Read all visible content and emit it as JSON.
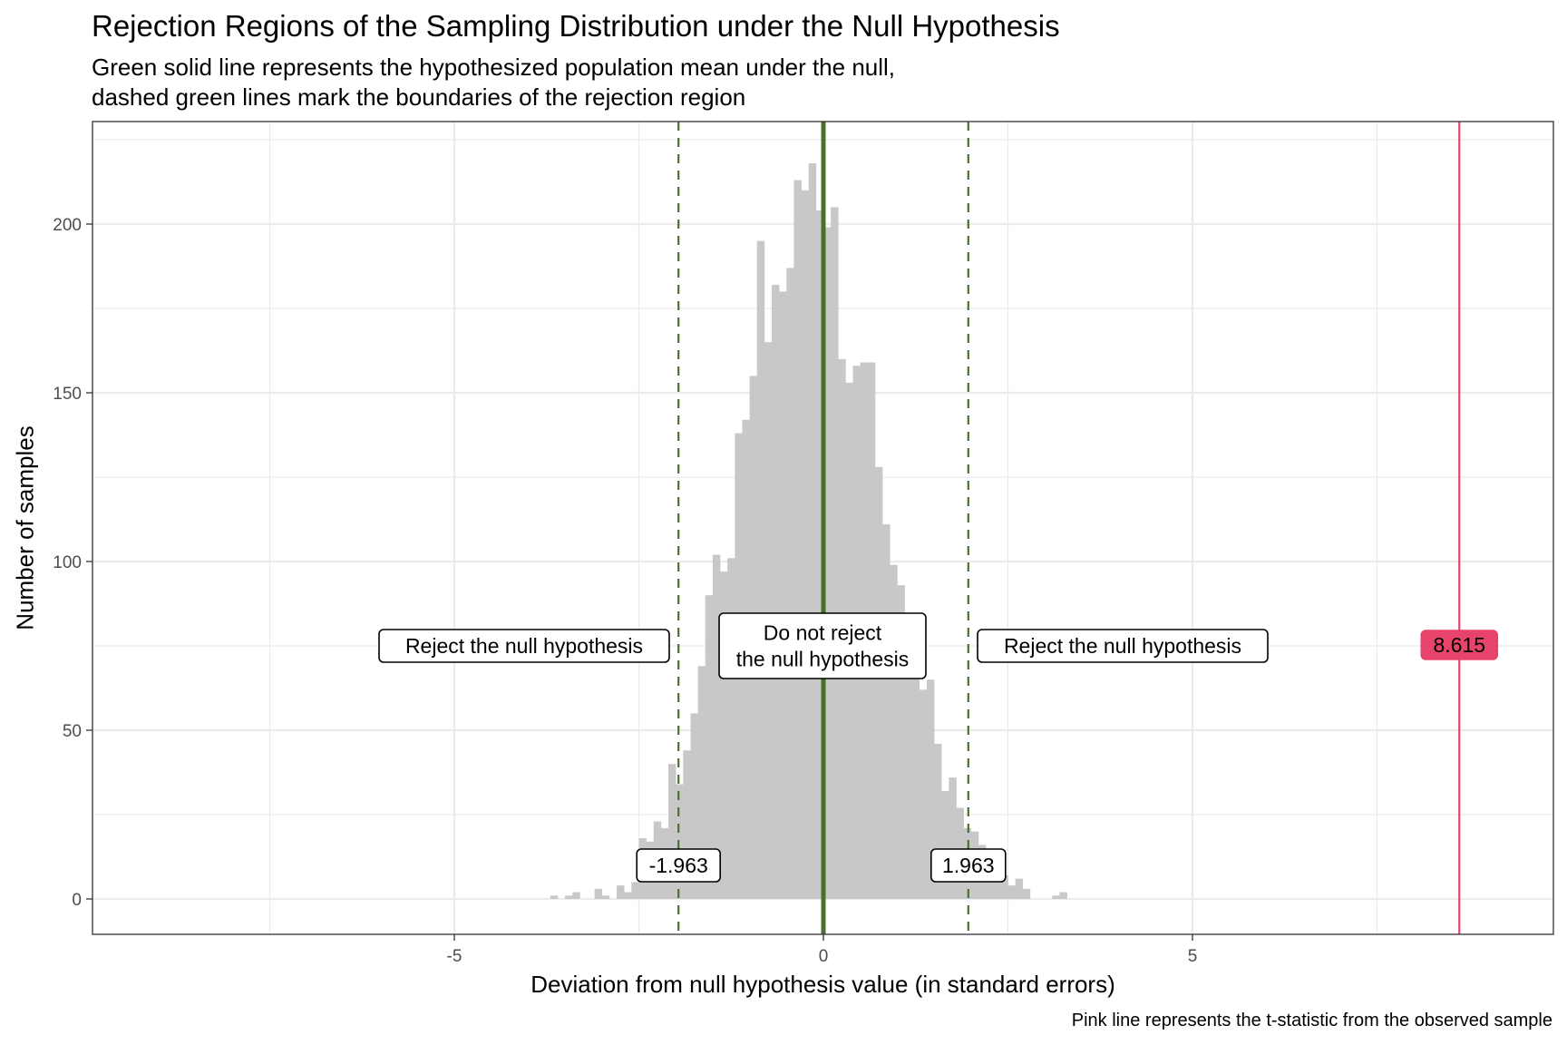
{
  "header": {
    "title": "Rejection Regions of the Sampling Distribution under the Null Hypothesis",
    "subtitle_line1": "Green solid line represents the hypothesized population mean under the null,",
    "subtitle_line2": "dashed green lines mark the boundaries of the rejection region"
  },
  "caption": "Pink line represents the t-statistic from the observed sample",
  "colors": {
    "bars": "#C8C8C8",
    "null_line": "#4E6E2E",
    "critical_lines": "#4E6E2E",
    "t_stat_line": "#E8436A",
    "grid": "#EBEBEB",
    "panel_border": "#333333"
  },
  "annotations": {
    "reject_left": "Reject the null hypothesis",
    "do_not_reject_line1": "Do not reject",
    "do_not_reject_line2": "the null hypothesis",
    "reject_right": "Reject the null hypothesis",
    "crit_left_label": "-1.963",
    "crit_right_label": "1.963",
    "t_stat_label": "8.615"
  },
  "chart_data": {
    "type": "bar",
    "subtype": "histogram",
    "title": "Rejection Regions of the Sampling Distribution under the Null Hypothesis",
    "subtitle": "Green solid line represents the hypothesized population mean under the null, dashed green lines mark the boundaries of the rejection region",
    "caption": "Pink line represents the t-statistic from the observed sample",
    "xlabel": "Deviation from null hypothesis value (in standard errors)",
    "ylabel": "Number of samples",
    "xlim": [
      -9.8,
      10.0
    ],
    "ylim": [
      -10.5,
      229
    ],
    "xticks": [
      -5,
      0,
      5
    ],
    "xtick_labels": [
      "-5",
      "0",
      "5"
    ],
    "yticks": [
      0,
      50,
      100,
      150,
      200
    ],
    "ytick_labels": [
      "0",
      "50",
      "100",
      "150",
      "200"
    ],
    "grid": true,
    "bin_width": 0.1,
    "bin_starts": [
      -3.7,
      -3.5,
      -3.4,
      -3.1,
      -3.0,
      -2.8,
      -2.7,
      -2.6,
      -2.5,
      -2.4,
      -2.3,
      -2.2,
      -2.1,
      -2.0,
      -1.9,
      -1.8,
      -1.7,
      -1.6,
      -1.5,
      -1.4,
      -1.3,
      -1.2,
      -1.1,
      -1.0,
      -0.9,
      -0.8,
      -0.7,
      -0.6,
      -0.5,
      -0.4,
      -0.3,
      -0.2,
      -0.1,
      0.0,
      0.1,
      0.2,
      0.3,
      0.4,
      0.5,
      0.6,
      0.7,
      0.8,
      0.9,
      1.0,
      1.1,
      1.2,
      1.3,
      1.4,
      1.5,
      1.6,
      1.7,
      1.8,
      1.9,
      2.0,
      2.1,
      2.2,
      2.3,
      2.4,
      2.5,
      2.6,
      2.7,
      2.8,
      2.9,
      3.1,
      3.2
    ],
    "values": [
      1,
      1,
      2,
      3,
      1,
      4,
      2,
      5,
      18,
      17,
      23,
      21,
      40,
      34,
      44,
      55,
      69,
      90,
      102,
      97,
      101,
      138,
      142,
      155,
      195,
      165,
      182,
      180,
      187,
      213,
      210,
      218,
      204,
      199,
      205,
      160,
      153,
      158,
      159,
      159,
      128,
      111,
      99,
      93,
      80,
      70,
      62,
      65,
      46,
      32,
      36,
      27,
      21,
      20,
      16,
      12,
      9,
      7,
      4,
      6,
      3,
      0,
      0,
      1,
      2
    ],
    "vlines": [
      {
        "x": 0,
        "style": "solid",
        "color": "#4E6E2E",
        "meaning": "hypothesized population mean"
      },
      {
        "x": -1.963,
        "style": "dashed",
        "color": "#4E6E2E",
        "meaning": "lower rejection boundary"
      },
      {
        "x": 1.963,
        "style": "dashed",
        "color": "#4E6E2E",
        "meaning": "upper rejection boundary"
      },
      {
        "x": 8.615,
        "style": "solid",
        "color": "#E8436A",
        "meaning": "observed t-statistic"
      }
    ],
    "annotations": [
      {
        "text": "Reject the null hypothesis",
        "x": -4.5,
        "y": 75
      },
      {
        "text": "Do not reject the null hypothesis",
        "x": 0,
        "y": 75
      },
      {
        "text": "Reject the null hypothesis",
        "x": 4.5,
        "y": 75
      },
      {
        "text": "-1.963",
        "x": -1.963,
        "y": 10
      },
      {
        "text": "1.963",
        "x": 1.963,
        "y": 10
      },
      {
        "text": "8.615",
        "x": 8.615,
        "y": 75
      }
    ]
  },
  "axes": {
    "xlabel": "Deviation from null hypothesis value (in standard errors)",
    "ylabel": "Number of samples"
  }
}
